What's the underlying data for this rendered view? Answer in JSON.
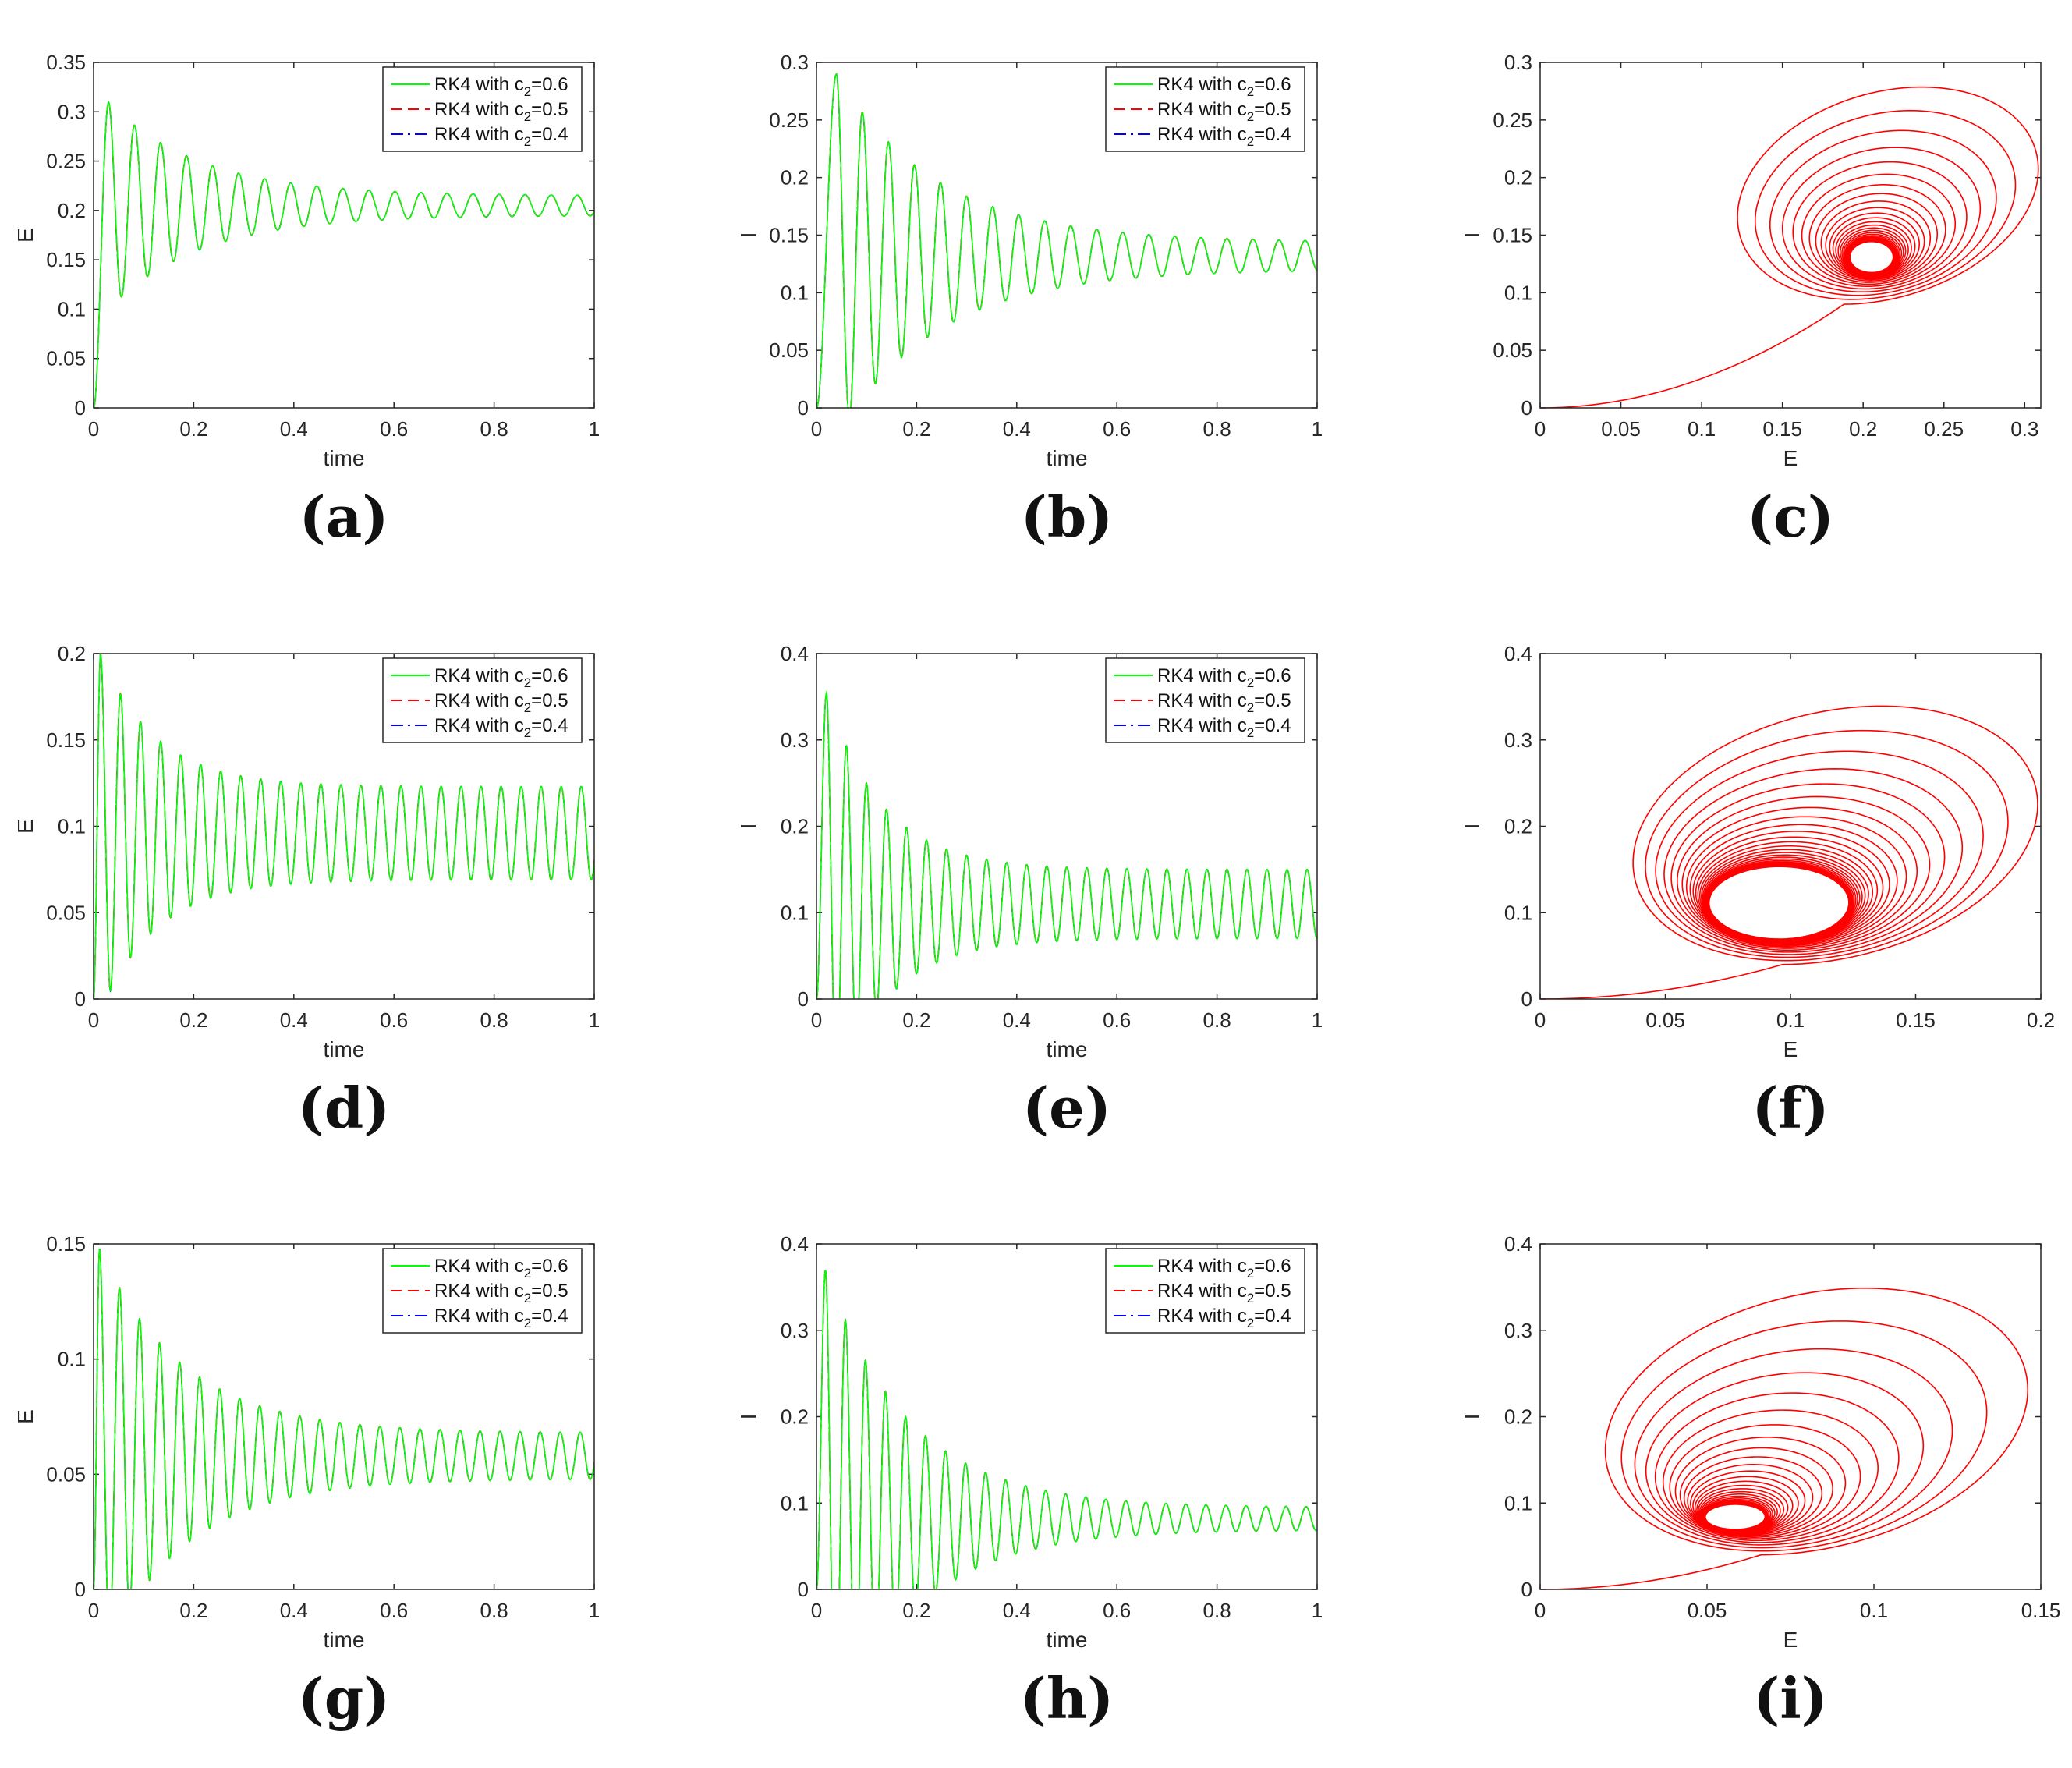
{
  "figure_title": "",
  "legend_entries": [
    {
      "label": "RK4 with c",
      "sub": "2",
      "value": "=0.6",
      "color": "#00ff00",
      "dash": "solid"
    },
    {
      "label": "RK4 with c",
      "sub": "2",
      "value": "=0.5",
      "color": "#ff0000",
      "dash": "dashed"
    },
    {
      "label": "RK4 with c",
      "sub": "2",
      "value": "=0.4",
      "color": "#0000ff",
      "dash": "dashdot"
    }
  ],
  "chart_data": [
    {
      "id": "a",
      "panel_label": "(a)",
      "type": "line",
      "title": "",
      "xlabel": "time",
      "ylabel": "E",
      "xlim": [
        0,
        1
      ],
      "ylim": [
        0,
        0.35
      ],
      "xticks": [
        "0",
        "0.2",
        "0.4",
        "0.6",
        "0.8",
        "1"
      ],
      "yticks": [
        "0",
        "0.05",
        "0.1",
        "0.15",
        "0.2",
        "0.25",
        "0.3",
        "0.35"
      ],
      "xtick_values": [
        0,
        0.2,
        0.4,
        0.6,
        0.8,
        1
      ],
      "ytick_values": [
        0,
        0.05,
        0.1,
        0.15,
        0.2,
        0.25,
        0.3,
        0.35
      ],
      "signal": {
        "start": 0,
        "peak": 0.31,
        "peak_t": 0.03,
        "steady": 0.205,
        "amp_end": 0.01,
        "period": 0.052,
        "decay": 5.5
      },
      "legend": true,
      "legend_position": "top-right"
    },
    {
      "id": "b",
      "panel_label": "(b)",
      "type": "line",
      "title": "",
      "xlabel": "time",
      "ylabel": "I",
      "xlim": [
        0,
        1
      ],
      "ylim": [
        0,
        0.3
      ],
      "xticks": [
        "0",
        "0.2",
        "0.4",
        "0.6",
        "0.8",
        "1"
      ],
      "yticks": [
        "0",
        "0.05",
        "0.1",
        "0.15",
        "0.2",
        "0.25",
        "0.3"
      ],
      "xtick_values": [
        0,
        0.2,
        0.4,
        0.6,
        0.8,
        1
      ],
      "ytick_values": [
        0,
        0.05,
        0.1,
        0.15,
        0.2,
        0.25,
        0.3
      ],
      "signal": {
        "start": 0,
        "peak": 0.29,
        "peak_t": 0.04,
        "steady": 0.132,
        "amp_end": 0.012,
        "period": 0.052,
        "decay": 5.0
      },
      "legend": true,
      "legend_position": "top-right"
    },
    {
      "id": "c",
      "panel_label": "(c)",
      "type": "phase",
      "title": "",
      "xlabel": "E",
      "ylabel": "I",
      "xlim": [
        0,
        0.31
      ],
      "ylim": [
        0,
        0.3
      ],
      "xticks": [
        "0",
        "0.05",
        "0.1",
        "0.15",
        "0.2",
        "0.25",
        "0.3"
      ],
      "yticks": [
        "0",
        "0.05",
        "0.1",
        "0.15",
        "0.2",
        "0.25",
        "0.3"
      ],
      "xtick_values": [
        0,
        0.05,
        0.1,
        0.15,
        0.2,
        0.25,
        0.3
      ],
      "ytick_values": [
        0,
        0.05,
        0.1,
        0.15,
        0.2,
        0.25,
        0.3
      ],
      "orbit": {
        "max_e": 0.31,
        "max_i": 0.29,
        "min_e": 0.115,
        "min_i": 0.09,
        "center_e": 0.205,
        "center_i": 0.13,
        "limit_rx": 0.012,
        "limit_ry": 0.012
      },
      "color": "#ff0000",
      "legend": false
    },
    {
      "id": "d",
      "panel_label": "(d)",
      "type": "line",
      "title": "",
      "xlabel": "time",
      "ylabel": "E",
      "xlim": [
        0,
        1
      ],
      "ylim": [
        0,
        0.2
      ],
      "xticks": [
        "0",
        "0.2",
        "0.4",
        "0.6",
        "0.8",
        "1"
      ],
      "yticks": [
        "0",
        "0.05",
        "0.1",
        "0.15",
        "0.2"
      ],
      "xtick_values": [
        0,
        0.2,
        0.4,
        0.6,
        0.8,
        1
      ],
      "ytick_values": [
        0,
        0.05,
        0.1,
        0.15,
        0.2
      ],
      "signal": {
        "start": 0,
        "peak": 0.2,
        "peak_t": 0.014,
        "steady": 0.096,
        "amp_end": 0.027,
        "period": 0.04,
        "decay": 9.0
      },
      "legend": true,
      "legend_position": "top-right"
    },
    {
      "id": "e",
      "panel_label": "(e)",
      "type": "line",
      "title": "",
      "xlabel": "time",
      "ylabel": "I",
      "xlim": [
        0,
        1
      ],
      "ylim": [
        0,
        0.4
      ],
      "xticks": [
        "0",
        "0.2",
        "0.4",
        "0.6",
        "0.8",
        "1"
      ],
      "yticks": [
        "0",
        "0.1",
        "0.2",
        "0.3",
        "0.4"
      ],
      "xtick_values": [
        0,
        0.2,
        0.4,
        0.6,
        0.8,
        1
      ],
      "ytick_values": [
        0,
        0.1,
        0.2,
        0.3,
        0.4
      ],
      "signal": {
        "start": 0,
        "peak": 0.355,
        "peak_t": 0.02,
        "steady": 0.11,
        "amp_end": 0.04,
        "period": 0.04,
        "decay": 9.0
      },
      "legend": true,
      "legend_position": "top-right"
    },
    {
      "id": "f",
      "panel_label": "(f)",
      "type": "phase",
      "title": "",
      "xlabel": "E",
      "ylabel": "I",
      "xlim": [
        0,
        0.2
      ],
      "ylim": [
        0,
        0.4
      ],
      "xticks": [
        "0",
        "0.05",
        "0.1",
        "0.15",
        "0.2"
      ],
      "yticks": [
        "0",
        "0.1",
        "0.2",
        "0.3",
        "0.4"
      ],
      "xtick_values": [
        0,
        0.05,
        0.1,
        0.15,
        0.2
      ],
      "ytick_values": [
        0,
        0.1,
        0.2,
        0.3,
        0.4
      ],
      "orbit": {
        "max_e": 0.2,
        "max_i": 0.355,
        "min_e": 0.035,
        "min_i": 0.04,
        "center_e": 0.095,
        "center_i": 0.11,
        "limit_rx": 0.027,
        "limit_ry": 0.04
      },
      "color": "#ff0000",
      "legend": false
    },
    {
      "id": "g",
      "panel_label": "(g)",
      "type": "line",
      "title": "",
      "xlabel": "time",
      "ylabel": "E",
      "xlim": [
        0,
        1
      ],
      "ylim": [
        0,
        0.15
      ],
      "xticks": [
        "0",
        "0.2",
        "0.4",
        "0.6",
        "0.8",
        "1"
      ],
      "yticks": [
        "0",
        "0.05",
        "0.1",
        "0.15"
      ],
      "xtick_values": [
        0,
        0.2,
        0.4,
        0.6,
        0.8,
        1
      ],
      "ytick_values": [
        0,
        0.05,
        0.1,
        0.15
      ],
      "signal": {
        "start": 0,
        "peak": 0.148,
        "peak_t": 0.012,
        "steady": 0.058,
        "amp_end": 0.01,
        "period": 0.04,
        "decay": 6.0
      },
      "legend": true,
      "legend_position": "top-right"
    },
    {
      "id": "h",
      "panel_label": "(h)",
      "type": "line",
      "title": "",
      "xlabel": "time",
      "ylabel": "I",
      "xlim": [
        0,
        1
      ],
      "ylim": [
        0,
        0.4
      ],
      "xticks": [
        "0",
        "0.2",
        "0.4",
        "0.6",
        "0.8",
        "1"
      ],
      "yticks": [
        "0",
        "0.1",
        "0.2",
        "0.3",
        "0.4"
      ],
      "xtick_values": [
        0,
        0.2,
        0.4,
        0.6,
        0.8,
        1
      ],
      "ytick_values": [
        0,
        0.1,
        0.2,
        0.3,
        0.4
      ],
      "signal": {
        "start": 0,
        "peak": 0.37,
        "peak_t": 0.018,
        "steady": 0.082,
        "amp_end": 0.013,
        "period": 0.04,
        "decay": 6.0
      },
      "legend": true,
      "legend_position": "top-right"
    },
    {
      "id": "i",
      "panel_label": "(i)",
      "type": "phase",
      "title": "",
      "xlabel": "E",
      "ylabel": "I",
      "xlim": [
        0,
        0.15
      ],
      "ylim": [
        0,
        0.4
      ],
      "xticks": [
        "0",
        "0.05",
        "0.1",
        "0.15"
      ],
      "yticks": [
        "0",
        "0.1",
        "0.2",
        "0.3",
        "0.4"
      ],
      "xtick_values": [
        0,
        0.05,
        0.1,
        0.15
      ],
      "ytick_values": [
        0,
        0.1,
        0.2,
        0.3,
        0.4
      ],
      "orbit": {
        "max_e": 0.148,
        "max_i": 0.37,
        "min_e": 0.017,
        "min_i": 0.04,
        "center_e": 0.058,
        "center_i": 0.082,
        "limit_rx": 0.008,
        "limit_ry": 0.012
      },
      "color": "#ff0000",
      "legend": false
    }
  ]
}
